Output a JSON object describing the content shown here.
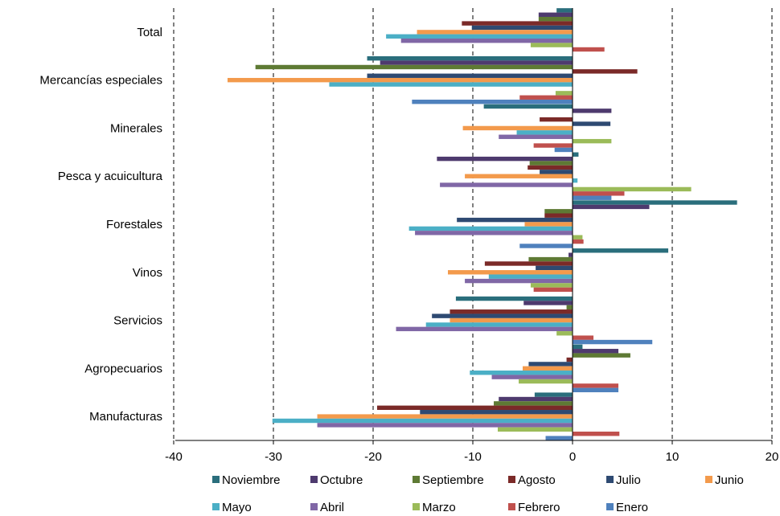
{
  "chart_data": {
    "type": "bar",
    "orientation": "horizontal",
    "title": "",
    "xlabel": "",
    "ylabel": "",
    "xlim": [
      -40,
      20
    ],
    "x_ticks": [
      -40,
      -30,
      -20,
      -10,
      0,
      10,
      20
    ],
    "grid": "vertical-dashed",
    "legend_position": "bottom",
    "categories": [
      "Total",
      "Mercancías especiales",
      "Minerales",
      "Pesca y acuicultura",
      "Forestales",
      "Vinos",
      "Servicios",
      "Agropecuarios",
      "Manufacturas"
    ],
    "series": [
      {
        "name": "Noviembre",
        "color": "#2A6E7C",
        "values": [
          -1.6,
          -20.6,
          -8.9,
          0.6,
          16.5,
          9.6,
          -11.7,
          1.0,
          -3.8
        ]
      },
      {
        "name": "Octubre",
        "color": "#4E3A6E",
        "values": [
          -3.4,
          -19.3,
          3.9,
          -13.6,
          7.7,
          -0.4,
          -4.9,
          4.6,
          -7.4
        ]
      },
      {
        "name": "Septiembre",
        "color": "#5E7A34",
        "values": [
          -3.4,
          -31.8,
          0.0,
          -4.3,
          -2.8,
          -4.4,
          -0.6,
          5.8,
          -7.9
        ]
      },
      {
        "name": "Agosto",
        "color": "#7B2A28",
        "values": [
          -11.1,
          6.5,
          -3.3,
          -4.5,
          -2.8,
          -8.8,
          -12.3,
          -0.6,
          -19.6
        ]
      },
      {
        "name": "Julio",
        "color": "#2E4A72",
        "values": [
          -10.1,
          -20.6,
          3.8,
          -3.3,
          -11.6,
          -3.7,
          -14.1,
          -4.4,
          -15.3
        ]
      },
      {
        "name": "Junio",
        "color": "#F39A4C",
        "values": [
          -15.6,
          -34.6,
          -11.0,
          -10.8,
          -4.8,
          -12.5,
          -12.3,
          -5.0,
          -25.6
        ]
      },
      {
        "name": "Mayo",
        "color": "#4BAFC6",
        "values": [
          -18.7,
          -24.4,
          -5.6,
          0.5,
          -16.4,
          -8.4,
          -14.7,
          -10.3,
          -30.1
        ]
      },
      {
        "name": "Abril",
        "color": "#8067A6",
        "values": [
          -17.2,
          0.0,
          -7.4,
          -13.3,
          -15.8,
          -10.8,
          -17.7,
          -8.1,
          -25.6
        ]
      },
      {
        "name": "Marzo",
        "color": "#9BBB59",
        "values": [
          -4.2,
          -1.7,
          3.9,
          11.9,
          1.0,
          -4.2,
          -1.6,
          -5.4,
          -7.5
        ]
      },
      {
        "name": "Febrero",
        "color": "#C0504D",
        "values": [
          3.2,
          -5.3,
          -3.9,
          5.2,
          1.1,
          -3.9,
          2.1,
          4.6,
          4.7
        ]
      },
      {
        "name": "Enero",
        "color": "#4F81BD",
        "values": [
          0.0,
          -16.1,
          -1.8,
          3.9,
          -5.3,
          0.0,
          8.0,
          4.6,
          -2.7
        ]
      }
    ]
  }
}
